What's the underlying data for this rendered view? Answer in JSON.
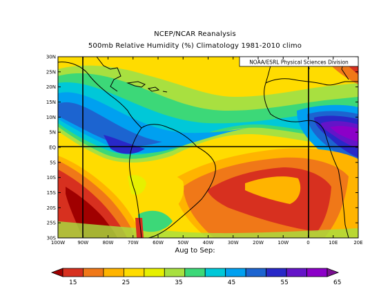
{
  "title": "NCEP/NCAR Reanalysis",
  "subtitle": "500mb Relative Humidity (%) Climatology 1981-2010 climo",
  "credit": "NOAA/ESRL Physical Sciences Division",
  "xlabel": "Aug to Sep:",
  "lat_ticks": [
    "30N",
    "25N",
    "20N",
    "15N",
    "10N",
    "5N",
    "EQ",
    "5S",
    "10S",
    "15S",
    "20S",
    "25S",
    "30S"
  ],
  "lon_ticks": [
    "100W",
    "90W",
    "80W",
    "70W",
    "60W",
    "50W",
    "40W",
    "30W",
    "20W",
    "10W",
    "0",
    "10E",
    "20E"
  ],
  "colorbar": {
    "colors": [
      "#a00000",
      "#d7301f",
      "#f07818",
      "#ffb400",
      "#ffdc00",
      "#e6f000",
      "#a8e040",
      "#3cd878",
      "#00c8d8",
      "#00a0f0",
      "#1c64d0",
      "#2828c8",
      "#6414c8",
      "#8c00c8",
      "#7a1090"
    ],
    "labels": [
      "15",
      "25",
      "35",
      "45",
      "55",
      "65"
    ]
  },
  "colors": {
    "land_outline": "#000000",
    "grid": "#000000"
  }
}
